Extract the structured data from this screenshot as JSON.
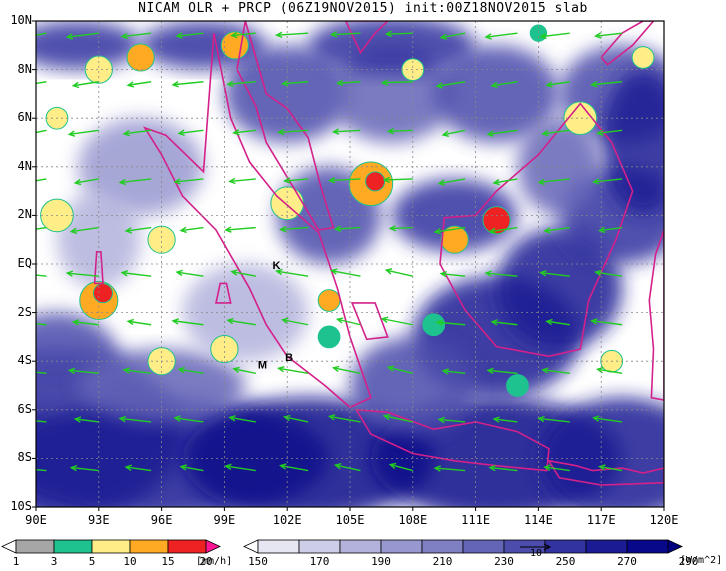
{
  "title": "NICAM OLR + PRCP (06Z19NOV2015) init:00Z18NOV2015 slab",
  "map": {
    "lat_labels": [
      "10N",
      "8N",
      "6N",
      "4N",
      "2N",
      "EQ",
      "2S",
      "4S",
      "6S",
      "8S",
      "10S"
    ],
    "lon_labels": [
      "90E",
      "93E",
      "96E",
      "99E",
      "102E",
      "105E",
      "108E",
      "111E",
      "114E",
      "117E",
      "120E"
    ],
    "station_labels": [
      {
        "id": "K",
        "text": "K"
      },
      {
        "id": "M",
        "text": "M"
      },
      {
        "id": "B",
        "text": "B"
      }
    ],
    "vector_ref_label": "10"
  },
  "precip_colorbar": {
    "labels": [
      "1",
      "3",
      "5",
      "10",
      "15",
      "20"
    ],
    "unit": "[mm/h]",
    "colors": [
      "#ffffff",
      "#a6a6a6",
      "#1ec28e",
      "#ffee88",
      "#ffaa22",
      "#ee2222",
      "#ff1493"
    ]
  },
  "olr_colorbar": {
    "labels": [
      "150",
      "170",
      "190",
      "210",
      "230",
      "250",
      "270",
      "290"
    ],
    "unit": "[W/m^2]",
    "colors": [
      "#ffffff",
      "#e6e6f3",
      "#cdcde8",
      "#b2b2dd",
      "#9898d0",
      "#7f7fc4",
      "#6565b8",
      "#4c4cac",
      "#3232a0",
      "#1b1b94",
      "#08088a",
      "#000080"
    ]
  }
}
